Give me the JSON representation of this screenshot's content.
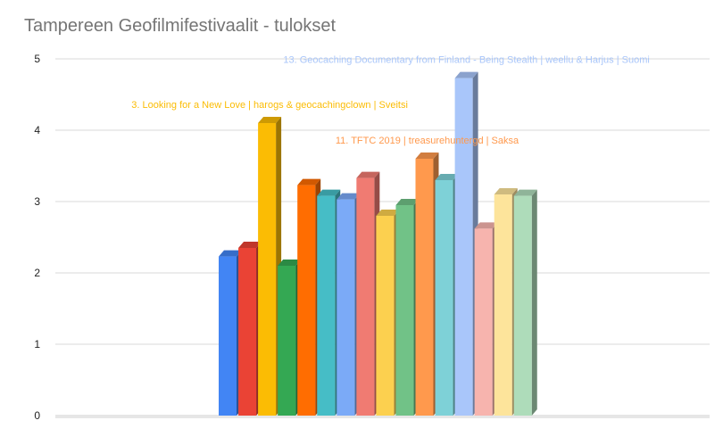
{
  "chart_data": {
    "type": "bar",
    "title": "Tampereen Geofilmifestivaalit - tulokset",
    "xlabel": "",
    "ylabel": "",
    "ylim": [
      0,
      5
    ],
    "yticks": [
      "0",
      "1",
      "2",
      "3",
      "4",
      "5"
    ],
    "grid": true,
    "legend": "none",
    "style": "3d-columns",
    "series": [
      {
        "values": [
          2.23,
          2.35,
          4.1,
          2.1,
          3.23,
          3.08,
          3.03,
          3.33,
          2.8,
          2.95,
          3.6,
          3.3,
          4.73,
          2.62,
          3.1,
          3.08
        ]
      }
    ],
    "colors": [
      "#4285f4",
      "#ea4335",
      "#fbbc04",
      "#34a853",
      "#ff6d01",
      "#46bdc6",
      "#7baaf7",
      "#f07b72",
      "#fcd04f",
      "#71c287",
      "#ff994d",
      "#7ed1d7",
      "#a9c6fa",
      "#f7b4ae",
      "#fde49b",
      "#aedcba"
    ],
    "annotations": [
      {
        "index": 2,
        "text": "3. Looking for a New Love | harogs & geocachingclown | Sveitsi",
        "color": "#fbbc04"
      },
      {
        "index": 10,
        "text": "11. TFTC 2019 | treasurehuntergd | Saksa",
        "color": "#ff994d"
      },
      {
        "index": 12,
        "text": "13. Geocaching Documentary from Finland - Being Stealth | weellu & Harjus | Suomi",
        "color": "#a9c6fa"
      }
    ]
  }
}
